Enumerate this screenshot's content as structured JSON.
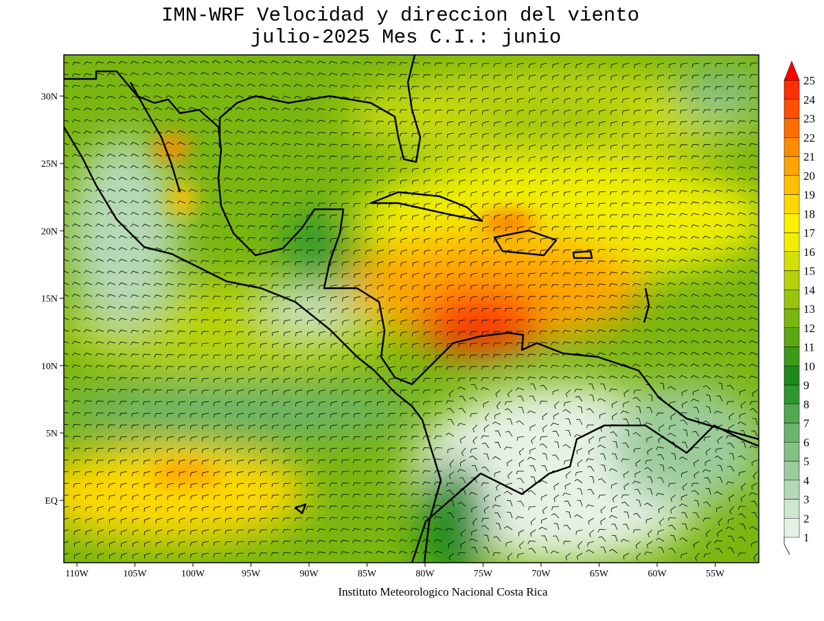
{
  "title": [
    "IMN-WRF Velocidad y direccion del viento",
    "julio-2025 Mes C.I.: junio"
  ],
  "x_axis": {
    "labels": [
      "110W",
      "105W",
      "100W",
      "95W",
      "90W",
      "85W",
      "80W",
      "75W",
      "70W",
      "65W",
      "60W",
      "55W"
    ]
  },
  "y_axis": {
    "labels": [
      "30N",
      "25N",
      "20N",
      "15N",
      "10N",
      "5N",
      "EQ"
    ]
  },
  "colorbar": {
    "levels": [
      1,
      2,
      3,
      4,
      5,
      6,
      7,
      8,
      9,
      10,
      11,
      12,
      13,
      14,
      15,
      16,
      17,
      18,
      19,
      20,
      21,
      22,
      23,
      24,
      25
    ],
    "colors": [
      "#e6f2e6",
      "#cfe6cf",
      "#b6d9b6",
      "#9ccc9c",
      "#84c084",
      "#6cb46c",
      "#52a852",
      "#2e982e",
      "#1e8a1e",
      "#3c9a18",
      "#5ca814",
      "#7ab610",
      "#98c40c",
      "#b6d208",
      "#d4e004",
      "#f0ee00",
      "#fff000",
      "#ffd800",
      "#ffc000",
      "#ffa600",
      "#ff8c00",
      "#ff6e00",
      "#ff5000",
      "#ff3000",
      "#ff0000"
    ]
  },
  "footer": "Instituto Meteorologico Nacional Costa Rica"
}
